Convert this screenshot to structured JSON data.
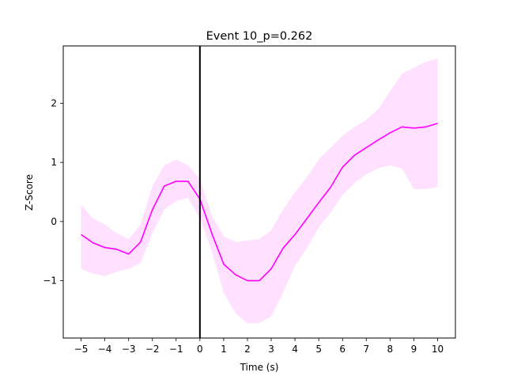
{
  "chart_data": {
    "type": "line",
    "title": "Event 10_p=0.262",
    "xlabel": "Time (s)",
    "ylabel": "Z-Score",
    "xlim": [
      -5.75,
      10.75
    ],
    "ylim": [
      -1.97,
      2.97
    ],
    "xticks": [
      -5,
      -4,
      -3,
      -2,
      -1,
      0,
      1,
      2,
      3,
      4,
      5,
      6,
      7,
      8,
      9,
      10
    ],
    "xtick_labels": [
      "−5",
      "−4",
      "−3",
      "−2",
      "−1",
      "0",
      "1",
      "2",
      "3",
      "4",
      "5",
      "6",
      "7",
      "8",
      "9",
      "10"
    ],
    "yticks": [
      -1,
      0,
      1,
      2
    ],
    "ytick_labels": [
      "−1",
      "0",
      "1",
      "2"
    ],
    "grid": false,
    "vline_x": 0,
    "colors": {
      "line": "#ff00ff",
      "band": "#ff00ff",
      "vline": "#000000"
    },
    "series": [
      {
        "x": [
          -5.0,
          -4.5,
          -4.0,
          -3.5,
          -3.0,
          -2.5,
          -2.0,
          -1.5,
          -1.0,
          -0.5,
          0.0,
          0.5,
          1.0,
          1.5,
          2.0,
          2.5,
          3.0,
          3.5,
          4.0,
          4.5,
          5.0,
          5.5,
          6.0,
          6.5,
          7.0,
          7.5,
          8.0,
          8.5,
          9.0,
          9.5,
          10.0
        ],
        "y": [
          -0.22,
          -0.36,
          -0.44,
          -0.47,
          -0.55,
          -0.35,
          0.2,
          0.6,
          0.68,
          0.68,
          0.38,
          -0.2,
          -0.72,
          -0.9,
          -1.0,
          -1.0,
          -0.8,
          -0.45,
          -0.22,
          0.05,
          0.32,
          0.58,
          0.92,
          1.12,
          1.25,
          1.38,
          1.5,
          1.6,
          1.58,
          1.6,
          1.66
        ],
        "lower": [
          -0.8,
          -0.88,
          -0.92,
          -0.85,
          -0.8,
          -0.7,
          -0.2,
          0.2,
          0.35,
          0.4,
          0.05,
          -0.5,
          -1.2,
          -1.55,
          -1.72,
          -1.72,
          -1.6,
          -1.2,
          -0.75,
          -0.45,
          -0.1,
          0.15,
          0.45,
          0.65,
          0.8,
          0.9,
          0.95,
          0.9,
          0.55,
          0.55,
          0.58
        ],
        "upper": [
          0.28,
          0.05,
          -0.05,
          -0.2,
          -0.3,
          -0.05,
          0.6,
          0.95,
          1.05,
          0.95,
          0.72,
          0.1,
          -0.25,
          -0.35,
          -0.32,
          -0.3,
          -0.15,
          0.2,
          0.5,
          0.75,
          1.05,
          1.25,
          1.45,
          1.6,
          1.72,
          1.9,
          2.2,
          2.5,
          2.6,
          2.7,
          2.76
        ]
      }
    ]
  }
}
